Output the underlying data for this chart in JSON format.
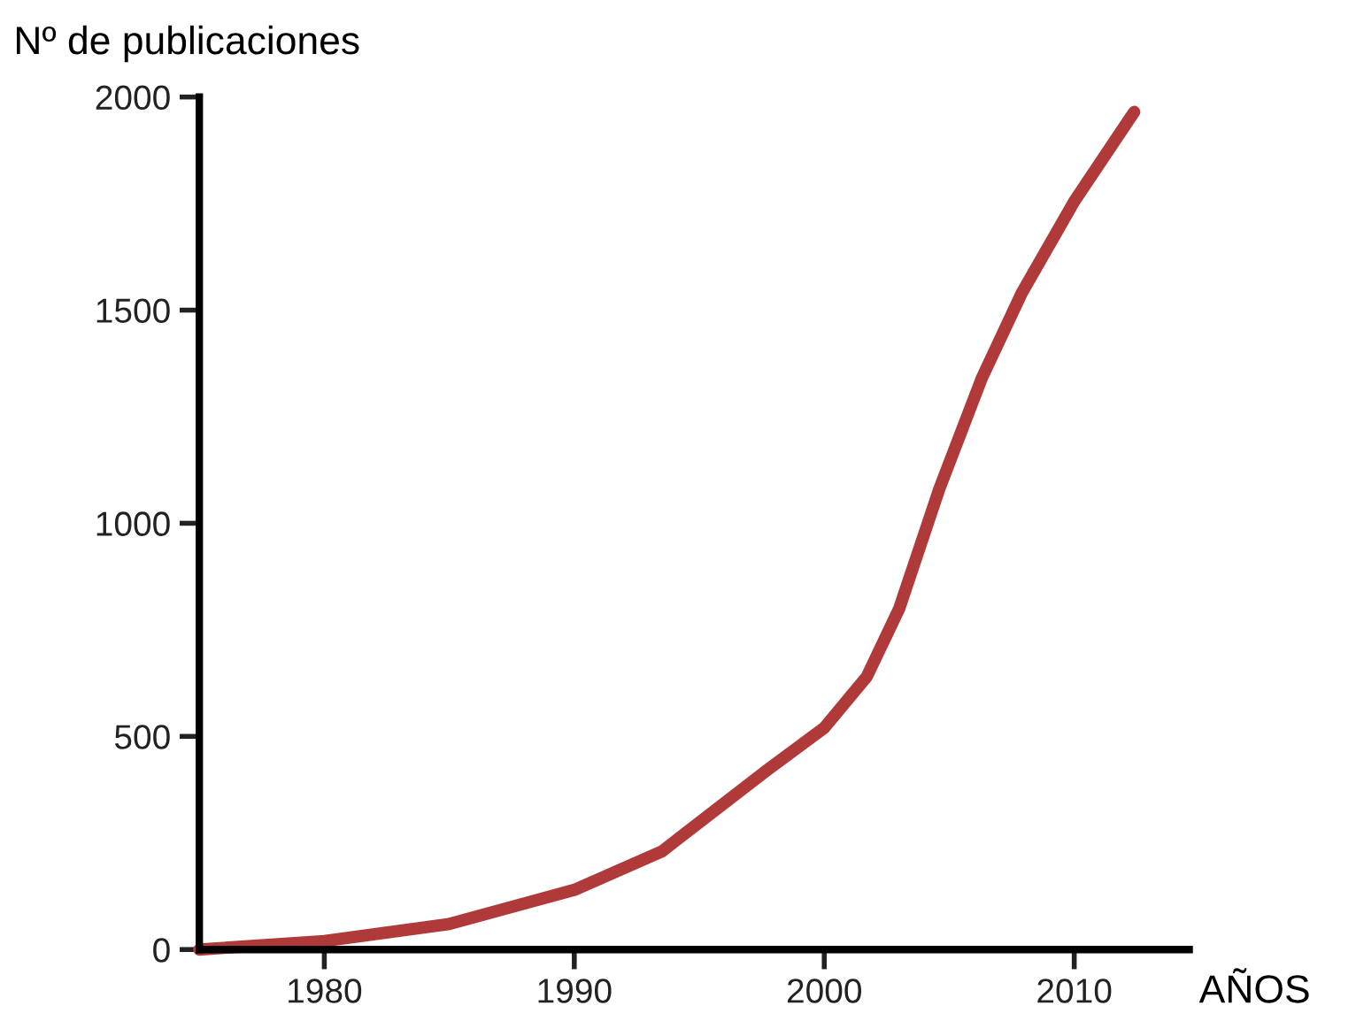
{
  "chart_data": {
    "type": "line",
    "ylabel": "Nº de publicaciones",
    "xlabel": "AÑOS",
    "x": [
      1975,
      1980,
      1985,
      1990,
      1993.5,
      1997.7,
      2000,
      2001.7,
      2003,
      2004.6,
      2006.3,
      2007.9,
      2010,
      2012.4
    ],
    "series": [
      {
        "color": "#b03a3a",
        "values": [
          0,
          20,
          60,
          140,
          230,
          420,
          520,
          640,
          800,
          1080,
          1340,
          1540,
          1755,
          1965
        ]
      }
    ],
    "xlim": [
      1975,
      2014.6
    ],
    "ylim": [
      0,
      2000
    ],
    "xticks": [
      1980,
      1990,
      2000,
      2010
    ],
    "yticks": [
      0,
      500,
      1000,
      1500,
      2000
    ],
    "grid": false,
    "legend": false,
    "marker": "none",
    "line_style": "solid"
  }
}
